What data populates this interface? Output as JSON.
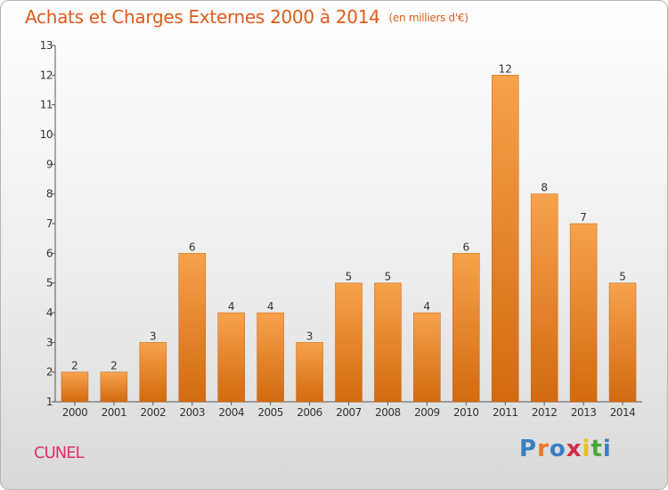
{
  "title": "Achats et Charges Externes 2000 à 2014",
  "subtitle": "(en milliers d'€)",
  "commune": "CUNEL",
  "logo": {
    "letters": [
      "P",
      "r",
      "o",
      "x",
      "i",
      "t",
      "i"
    ],
    "colors": [
      "#3a7fc4",
      "#e8762a",
      "#3a7fc4",
      "#d42b4a",
      "#e8c21c",
      "#4aa63a",
      "#3a7fc4"
    ]
  },
  "colors": {
    "bar": "#f0902e",
    "bar_dark": "#d56d10",
    "title": "#e05a1c",
    "commune": "#e0306a"
  },
  "chart_data": {
    "type": "bar",
    "categories": [
      "2000",
      "2001",
      "2002",
      "2003",
      "2004",
      "2005",
      "2006",
      "2007",
      "2008",
      "2009",
      "2010",
      "2011",
      "2012",
      "2013",
      "2014"
    ],
    "values": [
      2,
      2,
      3,
      6,
      4,
      4,
      3,
      5,
      5,
      4,
      6,
      12,
      8,
      7,
      5
    ],
    "ylim": [
      1,
      13
    ],
    "yticks": [
      "1",
      "2",
      "3",
      "4",
      "5",
      "6",
      "7",
      "8",
      "9",
      "10",
      "11",
      "12",
      "13"
    ],
    "grid": false,
    "data_labels": true
  }
}
